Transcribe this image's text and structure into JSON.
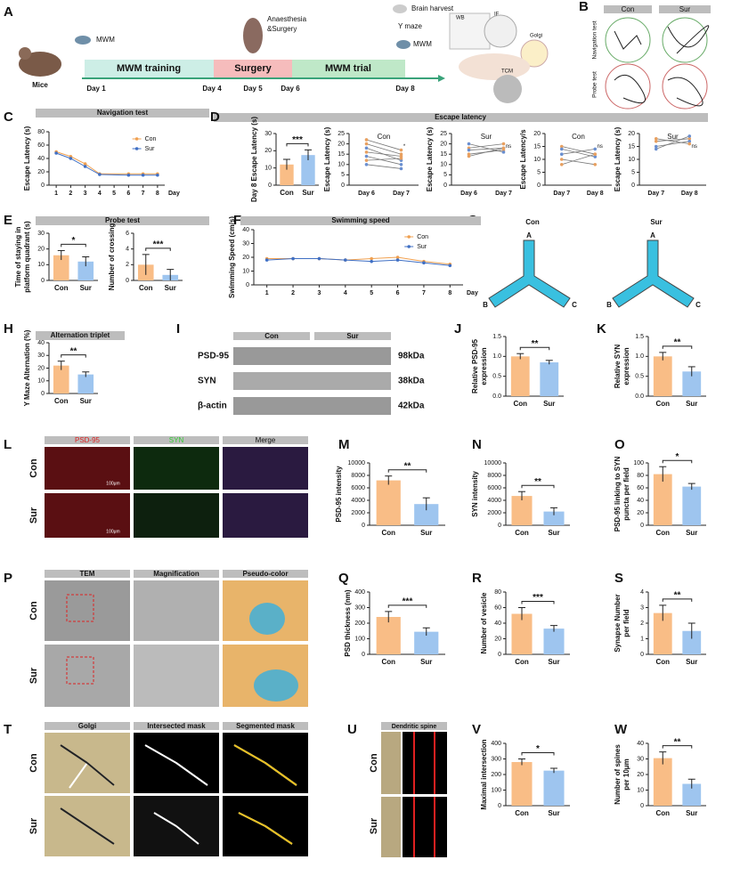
{
  "panels": [
    "A",
    "B",
    "C",
    "D",
    "E",
    "F",
    "G",
    "H",
    "I",
    "J",
    "K",
    "L",
    "M",
    "N",
    "O",
    "P",
    "Q",
    "R",
    "S",
    "T",
    "U",
    "V",
    "W"
  ],
  "timeline": {
    "subject": "Mice",
    "pretest": "MWM",
    "stages": [
      "MWM training",
      "Surgery",
      "MWM trial"
    ],
    "days": [
      "Day 1",
      "Day 4",
      "Day 5",
      "Day 6",
      "Day 8"
    ],
    "surgery": [
      "Anaesthesia",
      "&Surgery"
    ],
    "harvest": "Brain harvest",
    "tests": [
      "Y maze",
      "MWM"
    ],
    "assays": [
      "WB",
      "IF",
      "Golgi",
      "TCM"
    ]
  },
  "morris": {
    "groups": [
      "Con",
      "Sur"
    ],
    "rows": [
      "Navigation test",
      "Probe test"
    ]
  },
  "escape_title": "Escape latency",
  "ymaze": {
    "groups": [
      "Con",
      "Sur"
    ],
    "arms": [
      "A",
      "B",
      "C"
    ]
  },
  "western": {
    "groups": [
      "Con",
      "Sur"
    ],
    "proteins": [
      "PSD-95",
      "SYN",
      "β-actin"
    ],
    "sizes": [
      "98kDa",
      "38kDa",
      "42kDa"
    ]
  },
  "immunofluorescence": {
    "channels": [
      "PSD-95",
      "SYN",
      "Merge"
    ],
    "groups": [
      "Con",
      "Sur"
    ],
    "scale": "100μm"
  },
  "electron": {
    "columns": [
      "TEM",
      "Magnification",
      "Pseudo-color"
    ],
    "groups": [
      "Con",
      "Sur"
    ]
  },
  "golgi": {
    "columns": [
      "Golgi",
      "Intersected mask",
      "Segmented mask"
    ],
    "groups": [
      "Con",
      "Sur"
    ]
  },
  "spine": {
    "title": "Dendritic spine",
    "groups": [
      "Con",
      "Sur"
    ]
  },
  "chart_data": [
    {
      "type": "line",
      "title": "Navigation test",
      "ylabel": "Escape Latency (s)",
      "xlabel": "Day",
      "x": [
        1,
        2,
        3,
        4,
        6,
        7,
        8
      ],
      "xlim": [
        0.5,
        8.5
      ],
      "xticks": [
        1,
        2,
        3,
        4,
        5,
        6,
        7,
        8
      ],
      "ylim": [
        0,
        80
      ],
      "yticks": [
        0,
        20,
        40,
        60,
        80
      ],
      "legend": "upper right",
      "series": [
        {
          "name": "Con",
          "color": "#f0a050",
          "values": [
            50,
            43,
            32,
            17,
            17,
            17,
            17
          ]
        },
        {
          "name": "Sur",
          "color": "#3f6fc4",
          "values": [
            48,
            40,
            28,
            16,
            15,
            15,
            15
          ]
        }
      ]
    },
    {
      "type": "bar",
      "ylabel": [
        "Day 8 Escape Latency (s)"
      ],
      "categories": [
        "Con",
        "Sur"
      ],
      "values": [
        12,
        17.5
      ],
      "errors": [
        3,
        3
      ],
      "colors": [
        "#f9bd86",
        "#9ec5ef"
      ],
      "ylim": [
        0,
        30
      ],
      "yticks": [
        0,
        10,
        20,
        30
      ],
      "significance": "***"
    },
    {
      "type": "line",
      "title": "Con",
      "ylabel": "Escape Latency (s)",
      "categories": [
        "Day 6",
        "Day 7"
      ],
      "ylim": [
        0,
        25
      ],
      "yticks": [
        0,
        5,
        10,
        15,
        20,
        25
      ],
      "annotation": "*",
      "series": [
        {
          "color": "#e8a060",
          "values": [
            20,
            15
          ]
        },
        {
          "color": "#6a8fd0",
          "values": [
            18,
            12
          ]
        },
        {
          "color": "#e8a060",
          "values": [
            16,
            14
          ]
        },
        {
          "color": "#6a8fd0",
          "values": [
            14,
            10
          ]
        },
        {
          "color": "#e8a060",
          "values": [
            12,
            13
          ]
        },
        {
          "color": "#6a8fd0",
          "values": [
            10,
            8
          ]
        },
        {
          "color": "#e8a060",
          "values": [
            22,
            17
          ]
        }
      ]
    },
    {
      "type": "line",
      "title": "Sur",
      "ylabel": "Escape Latency (s)",
      "categories": [
        "Day 6",
        "Day 7"
      ],
      "ylim": [
        0,
        25
      ],
      "yticks": [
        0,
        5,
        10,
        15,
        20,
        25
      ],
      "annotation": "ns",
      "series": [
        {
          "color": "#e8a060",
          "values": [
            18,
            20
          ]
        },
        {
          "color": "#6a8fd0",
          "values": [
            17,
            18
          ]
        },
        {
          "color": "#e8a060",
          "values": [
            15,
            17
          ]
        },
        {
          "color": "#6a8fd0",
          "values": [
            20,
            16
          ]
        },
        {
          "color": "#e8a060",
          "values": [
            14,
            18
          ]
        }
      ]
    },
    {
      "type": "line",
      "title": "Con",
      "ylabel": "Escape Latency/s",
      "categories": [
        "Day 7",
        "Day 8"
      ],
      "ylim": [
        0,
        20
      ],
      "yticks": [
        0,
        5,
        10,
        15,
        20
      ],
      "annotation": "ns",
      "series": [
        {
          "color": "#e8a060",
          "values": [
            15,
            12
          ]
        },
        {
          "color": "#6a8fd0",
          "values": [
            12,
            14
          ]
        },
        {
          "color": "#e8a060",
          "values": [
            10,
            8
          ]
        },
        {
          "color": "#6a8fd0",
          "values": [
            14,
            11
          ]
        },
        {
          "color": "#e8a060",
          "values": [
            8,
            12
          ]
        }
      ]
    },
    {
      "type": "line",
      "title": "Sur",
      "ylabel": "Escape Latency (s)",
      "categories": [
        "Day 7",
        "Day 8"
      ],
      "ylim": [
        0,
        20
      ],
      "yticks": [
        0,
        5,
        10,
        15,
        20
      ],
      "annotation": "ns",
      "series": [
        {
          "color": "#e8a060",
          "values": [
            17,
            18
          ]
        },
        {
          "color": "#6a8fd0",
          "values": [
            15,
            17
          ]
        },
        {
          "color": "#e8a060",
          "values": [
            18,
            16
          ]
        },
        {
          "color": "#6a8fd0",
          "values": [
            14,
            19
          ]
        }
      ]
    },
    {
      "type": "bar",
      "title": "Probe test",
      "ylabel": [
        "Time of staying in",
        "platform quadrant (s)"
      ],
      "categories": [
        "Con",
        "Sur"
      ],
      "values": [
        16,
        12
      ],
      "errors": [
        3,
        3
      ],
      "colors": [
        "#f9bd86",
        "#9ec5ef"
      ],
      "ylim": [
        0,
        30
      ],
      "yticks": [
        0,
        10,
        20,
        30
      ],
      "significance": "*"
    },
    {
      "type": "bar",
      "ylabel": [
        "Number of crossing"
      ],
      "categories": [
        "Con",
        "Sur"
      ],
      "values": [
        2,
        0.7
      ],
      "errors": [
        1.3,
        0.7
      ],
      "colors": [
        "#f9bd86",
        "#9ec5ef"
      ],
      "ylim": [
        0,
        6
      ],
      "yticks": [
        0,
        2,
        4,
        6
      ],
      "significance": "***"
    },
    {
      "type": "line",
      "title": "Swimming speed",
      "ylabel": "Swimming Speed (cm/s)",
      "xlabel": "Day",
      "x": [
        1,
        2,
        3,
        4,
        5,
        6,
        7,
        8
      ],
      "xlim": [
        0.5,
        8.5
      ],
      "xticks": [
        1,
        2,
        3,
        4,
        5,
        6,
        7,
        8
      ],
      "ylim": [
        0,
        40
      ],
      "yticks": [
        0,
        10,
        20,
        30,
        40
      ],
      "legend": "upper right",
      "series": [
        {
          "name": "Con",
          "color": "#f0a050",
          "values": [
            19,
            19,
            19,
            18,
            19,
            20,
            17,
            15
          ]
        },
        {
          "name": "Sur",
          "color": "#3f6fc4",
          "values": [
            18,
            19,
            19,
            18,
            17,
            18,
            16,
            14
          ]
        }
      ]
    },
    {
      "type": "bar",
      "title": "Alternation triplet",
      "ylabel": [
        "Y Maze Alternation (%)"
      ],
      "categories": [
        "Con",
        "Sur"
      ],
      "values": [
        22,
        15
      ],
      "errors": [
        3.5,
        2
      ],
      "colors": [
        "#f9bd86",
        "#9ec5ef"
      ],
      "ylim": [
        0,
        40
      ],
      "yticks": [
        0,
        10,
        20,
        30,
        40
      ],
      "significance": "**"
    },
    {
      "type": "bar",
      "ylabel": [
        "Relative PSD-95",
        "expression"
      ],
      "categories": [
        "Con",
        "Sur"
      ],
      "values": [
        1.0,
        0.85
      ],
      "errors": [
        0.07,
        0.05
      ],
      "colors": [
        "#f9bd86",
        "#9ec5ef"
      ],
      "ylim": [
        0,
        1.5
      ],
      "yticks": [
        {
          "value": 0,
          "label": "0.0"
        },
        0.5,
        {
          "value": 1,
          "label": "1.0"
        },
        1.5
      ],
      "significance": "**"
    },
    {
      "type": "bar",
      "ylabel": [
        "Relative SYN",
        "expression"
      ],
      "categories": [
        "Con",
        "Sur"
      ],
      "values": [
        1.0,
        0.62
      ],
      "errors": [
        0.1,
        0.12
      ],
      "colors": [
        "#f9bd86",
        "#9ec5ef"
      ],
      "ylim": [
        0,
        1.5
      ],
      "yticks": [
        {
          "value": 0,
          "label": "0.0"
        },
        0.5,
        {
          "value": 1,
          "label": "1.0"
        },
        1.5
      ],
      "significance": "**"
    },
    {
      "type": "bar",
      "ylabel": [
        "PSD-95  intensity"
      ],
      "categories": [
        "Con",
        "Sur"
      ],
      "values": [
        7200,
        3400
      ],
      "errors": [
        700,
        1000
      ],
      "colors": [
        "#f9bd86",
        "#9ec5ef"
      ],
      "ylim": [
        0,
        10000
      ],
      "yticks": [
        0,
        2000,
        4000,
        6000,
        8000,
        10000
      ],
      "significance": "**"
    },
    {
      "type": "bar",
      "ylabel": [
        "SYN intensity"
      ],
      "categories": [
        "Con",
        "Sur"
      ],
      "values": [
        4700,
        2200
      ],
      "errors": [
        700,
        600
      ],
      "colors": [
        "#f9bd86",
        "#9ec5ef"
      ],
      "ylim": [
        0,
        10000
      ],
      "yticks": [
        0,
        2000,
        4000,
        6000,
        8000,
        10000
      ],
      "significance": "**"
    },
    {
      "type": "bar",
      "ylabel": [
        "PSD-95 linking to SYN",
        "puncta per field"
      ],
      "categories": [
        "Con",
        "Sur"
      ],
      "values": [
        82,
        62
      ],
      "errors": [
        12,
        5
      ],
      "colors": [
        "#f9bd86",
        "#9ec5ef"
      ],
      "ylim": [
        0,
        100
      ],
      "yticks": [
        0,
        20,
        40,
        60,
        80,
        100
      ],
      "significance": "*"
    },
    {
      "type": "bar",
      "ylabel": [
        "PSD thickness (nm)"
      ],
      "categories": [
        "Con",
        "Sur"
      ],
      "values": [
        240,
        145
      ],
      "errors": [
        35,
        25
      ],
      "colors": [
        "#f9bd86",
        "#9ec5ef"
      ],
      "ylim": [
        0,
        400
      ],
      "yticks": [
        0,
        100,
        200,
        300,
        400
      ],
      "significance": "***"
    },
    {
      "type": "bar",
      "ylabel": [
        "Number of vesicle"
      ],
      "categories": [
        "Con",
        "Sur"
      ],
      "values": [
        52,
        33
      ],
      "errors": [
        8,
        4
      ],
      "colors": [
        "#f9bd86",
        "#9ec5ef"
      ],
      "ylim": [
        0,
        80
      ],
      "yticks": [
        0,
        20,
        40,
        60,
        80
      ],
      "significance": "***"
    },
    {
      "type": "bar",
      "ylabel": [
        "Synapse Number",
        "per field"
      ],
      "categories": [
        "Con",
        "Sur"
      ],
      "values": [
        2.65,
        1.5
      ],
      "errors": [
        0.5,
        0.5
      ],
      "colors": [
        "#f9bd86",
        "#9ec5ef"
      ],
      "ylim": [
        0,
        4
      ],
      "yticks": [
        0,
        1,
        2,
        3,
        4
      ],
      "significance": "**"
    },
    {
      "type": "bar",
      "ylabel": [
        "Maximal intersection"
      ],
      "categories": [
        "Con",
        "Sur"
      ],
      "values": [
        280,
        225
      ],
      "errors": [
        20,
        15
      ],
      "colors": [
        "#f9bd86",
        "#9ec5ef"
      ],
      "ylim": [
        0,
        400
      ],
      "yticks": [
        0,
        100,
        200,
        300,
        400
      ],
      "significance": "*"
    },
    {
      "type": "bar",
      "ylabel": [
        "Number of spines",
        "per 10μm"
      ],
      "categories": [
        "Con",
        "Sur"
      ],
      "values": [
        30.5,
        14
      ],
      "errors": [
        4,
        3
      ],
      "colors": [
        "#f9bd86",
        "#9ec5ef"
      ],
      "ylim": [
        0,
        40
      ],
      "yticks": [
        0,
        10,
        20,
        30,
        40
      ],
      "significance": "**"
    }
  ]
}
